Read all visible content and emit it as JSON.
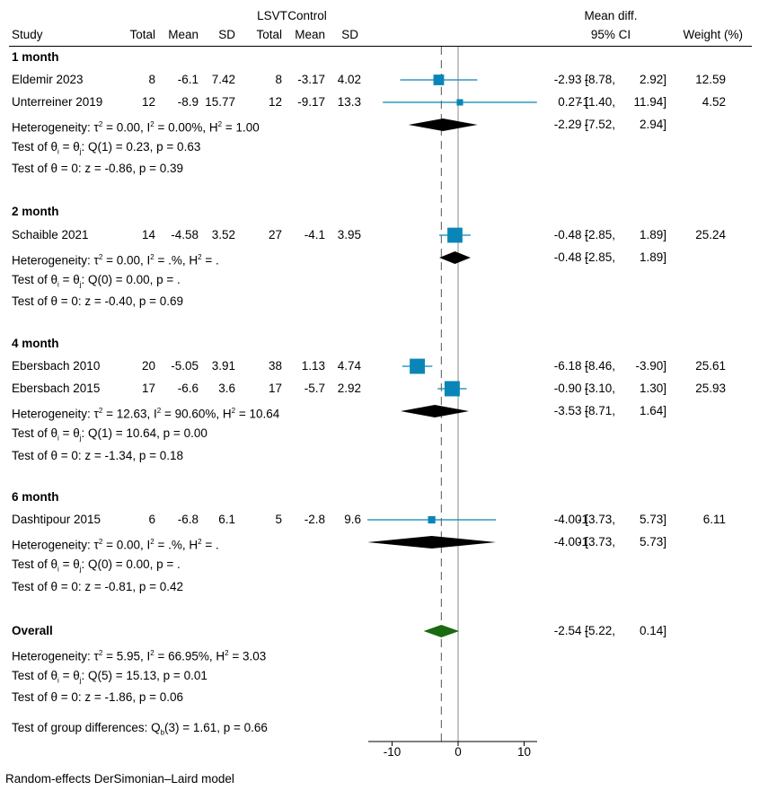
{
  "chart_data": {
    "type": "forest",
    "title": "",
    "xlabel": "",
    "xlim": [
      -13.8,
      11.9
    ],
    "xticks": [
      -10,
      0,
      10
    ],
    "overall_line": -2.54,
    "null_line": 0,
    "header": {
      "group_lsvt": "LSVT",
      "group_control": "Control",
      "study": "Study",
      "total": "Total",
      "mean": "Mean",
      "sd": "SD",
      "effect_top": "Mean diff.",
      "effect_bottom": "95% CI",
      "weight": "Weight (%)"
    },
    "subgroups": [
      {
        "label": "1 month",
        "studies": [
          {
            "name": "Eldemir 2023",
            "t_total": "8",
            "t_mean": "-6.1",
            "t_sd": "7.42",
            "c_total": "8",
            "c_mean": "-3.17",
            "c_sd": "4.02",
            "es": -2.93,
            "lo": -8.78,
            "hi": 2.92,
            "ci_text": "-2.93 [  -8.78,   2.92]",
            "weight": 12.59,
            "weight_text": "12.59"
          },
          {
            "name": "Unterreiner 2019",
            "t_total": "12",
            "t_mean": "-8.9",
            "t_sd": "15.77",
            "c_total": "12",
            "c_mean": "-9.17",
            "c_sd": "13.3",
            "es": 0.27,
            "lo": -11.4,
            "hi": 11.94,
            "ci_text": "0.27 [ -11.40,  11.94]",
            "weight": 4.52,
            "weight_text": "4.52"
          }
        ],
        "pooled": {
          "es": -2.29,
          "lo": -7.52,
          "hi": 2.94,
          "ci_text": "-2.29 [  -7.52,   2.94]"
        },
        "heterogeneity": {
          "tau2": "0.00",
          "i2": "0.00%",
          "h2": "1.00"
        },
        "q_test": {
          "df": "1",
          "q": "0.23",
          "p": "0.63"
        },
        "z_test": {
          "z": "-0.86",
          "p": "0.39"
        }
      },
      {
        "label": "2 month",
        "studies": [
          {
            "name": "Schaible 2021",
            "t_total": "14",
            "t_mean": "-4.58",
            "t_sd": "3.52",
            "c_total": "27",
            "c_mean": "-4.1",
            "c_sd": "3.95",
            "es": -0.48,
            "lo": -2.85,
            "hi": 1.89,
            "ci_text": "-0.48 [  -2.85,   1.89]",
            "weight": 25.24,
            "weight_text": "25.24"
          }
        ],
        "pooled": {
          "es": -0.48,
          "lo": -2.85,
          "hi": 1.89,
          "ci_text": "-0.48 [  -2.85,   1.89]"
        },
        "heterogeneity": {
          "tau2": "0.00",
          "i2": ".%",
          "h2": "."
        },
        "q_test": {
          "df": "0",
          "q": "0.00",
          "p": "."
        },
        "z_test": {
          "z": "-0.40",
          "p": "0.69"
        }
      },
      {
        "label": "4 month",
        "studies": [
          {
            "name": "Ebersbach 2010",
            "t_total": "20",
            "t_mean": "-5.05",
            "t_sd": "3.91",
            "c_total": "38",
            "c_mean": "1.13",
            "c_sd": "4.74",
            "es": -6.18,
            "lo": -8.46,
            "hi": -3.9,
            "ci_text": "-6.18 [  -8.46,  -3.90]",
            "weight": 25.61,
            "weight_text": "25.61"
          },
          {
            "name": "Ebersbach 2015",
            "t_total": "17",
            "t_mean": "-6.6",
            "t_sd": "3.6",
            "c_total": "17",
            "c_mean": "-5.7",
            "c_sd": "2.92",
            "es": -0.9,
            "lo": -3.1,
            "hi": 1.3,
            "ci_text": "-0.90 [  -3.10,   1.30]",
            "weight": 25.93,
            "weight_text": "25.93"
          }
        ],
        "pooled": {
          "es": -3.53,
          "lo": -8.71,
          "hi": 1.64,
          "ci_text": "-3.53 [  -8.71,   1.64]"
        },
        "heterogeneity": {
          "tau2": "12.63",
          "i2": "90.60%",
          "h2": "10.64"
        },
        "q_test": {
          "df": "1",
          "q": "10.64",
          "p": "0.00"
        },
        "z_test": {
          "z": "-1.34",
          "p": "0.18"
        }
      },
      {
        "label": "6 month",
        "studies": [
          {
            "name": "Dashtipour 2015",
            "t_total": "6",
            "t_mean": "-6.8",
            "t_sd": "6.1",
            "c_total": "5",
            "c_mean": "-2.8",
            "c_sd": "9.6",
            "es": -4.0,
            "lo": -13.73,
            "hi": 5.73,
            "ci_text": "-4.00 [ -13.73,   5.73]",
            "weight": 6.11,
            "weight_text": "6.11"
          }
        ],
        "pooled": {
          "es": -4.0,
          "lo": -13.73,
          "hi": 5.73,
          "ci_text": "-4.00 [ -13.73,   5.73]"
        },
        "heterogeneity": {
          "tau2": "0.00",
          "i2": ".%",
          "h2": "."
        },
        "q_test": {
          "df": "0",
          "q": "0.00",
          "p": "."
        },
        "z_test": {
          "z": "-0.81",
          "p": "0.42"
        }
      }
    ],
    "overall": {
      "label": "Overall",
      "es": -2.54,
      "lo": -5.22,
      "hi": 0.14,
      "ci_text": "-2.54 [  -5.22,   0.14]",
      "heterogeneity": {
        "tau2": "5.95",
        "i2": "66.95%",
        "h2": "3.03"
      },
      "q_test": {
        "df": "5",
        "q": "15.13",
        "p": "0.01"
      },
      "z_test": {
        "z": "-1.86",
        "p": "0.06"
      }
    },
    "group_diff": {
      "df": "3",
      "q": "1.61",
      "p": "0.66"
    },
    "footnote": "Random-effects DerSimonian–Laird model",
    "colors": {
      "study_marker": "#0a85b8",
      "subgroup_diamond": "#000000",
      "overall_diamond": "#1a6a10",
      "null_line": "#8a8a8a",
      "overall_line": "#555555"
    }
  }
}
